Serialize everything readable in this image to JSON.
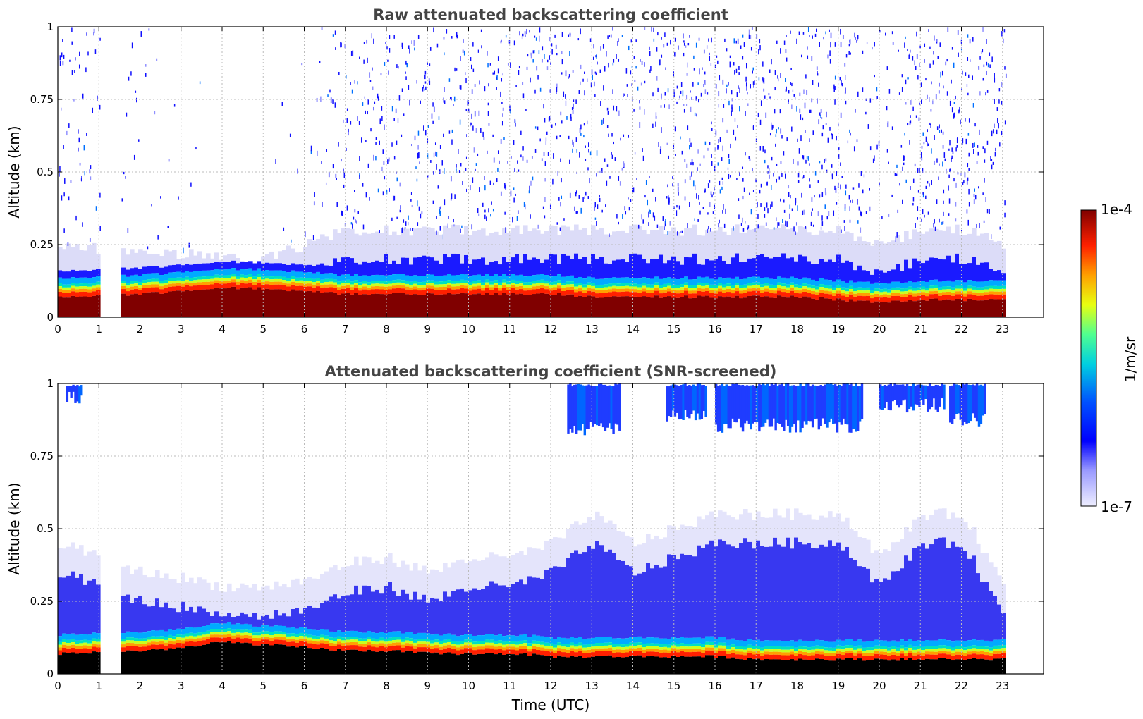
{
  "chart_data": [
    {
      "type": "heatmap",
      "title": "Raw attenuated backscattering coefficient",
      "xlabel": "",
      "ylabel": "Altitude (km)",
      "xlim": [
        0,
        24
      ],
      "ylim": [
        0,
        1
      ],
      "x_ticks": [
        "0",
        "1",
        "2",
        "3",
        "4",
        "5",
        "6",
        "7",
        "8",
        "9",
        "10",
        "11",
        "12",
        "13",
        "14",
        "15",
        "16",
        "17",
        "18",
        "19",
        "20",
        "21",
        "22",
        "23"
      ],
      "y_ticks": [
        "0",
        "0.25",
        "0.5",
        "0.75",
        "1"
      ],
      "grid": true,
      "data_gaps_utc": [
        [
          0.95,
          1.55
        ],
        [
          23.0,
          24.0
        ]
      ],
      "layers": {
        "x": [
          0,
          1,
          2,
          3,
          4,
          5,
          6,
          7,
          8,
          9,
          10,
          11,
          12,
          13,
          14,
          15,
          16,
          17,
          18,
          19,
          20,
          21,
          22,
          23
        ],
        "saturated_top_km": [
          0.07,
          null,
          0.08,
          0.09,
          0.1,
          0.1,
          0.09,
          0.08,
          0.08,
          0.08,
          0.08,
          0.08,
          0.08,
          0.07,
          0.07,
          0.07,
          0.07,
          0.07,
          0.07,
          0.06,
          0.05,
          0.06,
          0.06,
          0.06
        ],
        "aerosol_top_km": [
          0.25,
          null,
          0.22,
          0.22,
          0.2,
          0.2,
          0.25,
          0.3,
          0.3,
          0.3,
          0.3,
          0.3,
          0.3,
          0.3,
          0.3,
          0.3,
          0.3,
          0.3,
          0.3,
          0.3,
          0.25,
          0.3,
          0.3,
          0.25
        ],
        "noise_density": [
          0.5,
          null,
          0.15,
          0.05,
          0.02,
          0.02,
          0.1,
          0.55,
          0.6,
          0.65,
          0.65,
          0.6,
          0.7,
          0.75,
          0.55,
          0.85,
          0.85,
          0.85,
          0.85,
          0.85,
          0.2,
          0.9,
          0.85,
          0.6
        ]
      }
    },
    {
      "type": "heatmap",
      "title": "Attenuated backscattering coefficient (SNR-screened)",
      "xlabel": "Time (UTC)",
      "ylabel": "Altitude (km)",
      "xlim": [
        0,
        24
      ],
      "ylim": [
        0,
        1
      ],
      "x_ticks": [
        "0",
        "1",
        "2",
        "3",
        "4",
        "5",
        "6",
        "7",
        "8",
        "9",
        "10",
        "11",
        "12",
        "13",
        "14",
        "15",
        "16",
        "17",
        "18",
        "19",
        "20",
        "21",
        "22",
        "23"
      ],
      "y_ticks": [
        "0",
        "0.25",
        "0.5",
        "0.75",
        "1"
      ],
      "grid": true,
      "data_gaps_utc": [
        [
          0.95,
          1.55
        ],
        [
          23.0,
          24.0
        ]
      ],
      "layers": {
        "x": [
          0,
          1,
          2,
          3,
          4,
          5,
          6,
          7,
          8,
          9,
          10,
          11,
          12,
          13,
          14,
          15,
          16,
          17,
          18,
          19,
          20,
          21,
          22,
          23
        ],
        "black_top_km": [
          0.07,
          null,
          0.08,
          0.09,
          0.11,
          0.1,
          0.09,
          0.08,
          0.08,
          0.07,
          0.07,
          0.07,
          0.06,
          0.06,
          0.06,
          0.06,
          0.06,
          0.05,
          0.05,
          0.05,
          0.05,
          0.05,
          0.05,
          0.05
        ],
        "aerosol_top_km": [
          0.45,
          null,
          0.35,
          0.33,
          0.3,
          0.3,
          0.32,
          0.38,
          0.4,
          0.35,
          0.4,
          0.4,
          0.45,
          0.55,
          0.45,
          0.5,
          0.55,
          0.55,
          0.55,
          0.55,
          0.4,
          0.55,
          0.55,
          0.3
        ],
        "cloud_patches": [
          {
            "x0": 0.2,
            "x1": 0.55,
            "y0": 0.93,
            "y1": 1.0
          },
          {
            "x0": 12.4,
            "x1": 13.7,
            "y0": 0.82,
            "y1": 1.0
          },
          {
            "x0": 14.8,
            "x1": 15.8,
            "y0": 0.86,
            "y1": 1.0
          },
          {
            "x0": 16.0,
            "x1": 19.6,
            "y0": 0.83,
            "y1": 1.0
          },
          {
            "x0": 20.0,
            "x1": 21.6,
            "y0": 0.9,
            "y1": 1.0
          },
          {
            "x0": 21.7,
            "x1": 22.6,
            "y0": 0.85,
            "y1": 1.0
          }
        ]
      }
    }
  ],
  "colorbar": {
    "max_label": "1e-4",
    "min_label": "1e-7",
    "unit_label": "1/m/sr",
    "scale": "log",
    "range": [
      1e-07,
      0.0001
    ]
  }
}
